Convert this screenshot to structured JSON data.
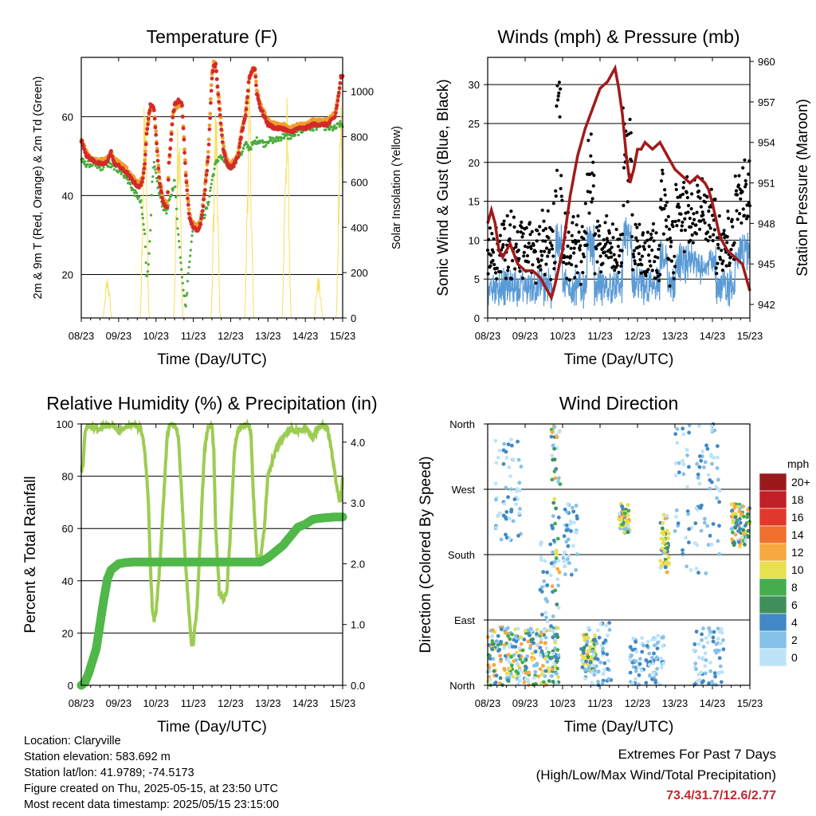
{
  "chart_data": [
    {
      "type": "line",
      "title": "Temperature (F)",
      "xlabel": "Time (Day/UTC)",
      "ylabel": "2m & 9m T (Red, Orange) & 2m Td (Green)",
      "y2label": "Solar Insolation (Yellow)",
      "x": [
        "08/23",
        "09/23",
        "10/23",
        "11/23",
        "12/23",
        "13/23",
        "14/23",
        "15/23"
      ],
      "ylim": [
        9,
        75
      ],
      "y2lim": [
        0,
        1150
      ],
      "yticks": [
        20,
        40,
        60
      ],
      "y2ticks": [
        0,
        200,
        400,
        600,
        800,
        1000
      ],
      "grid": true,
      "series": [
        {
          "name": "2m T",
          "color": "#d42a2a",
          "x": [
            0,
            0.15,
            0.3,
            0.5,
            0.65,
            0.8,
            0.88,
            0.95,
            1.05,
            1.2,
            1.35,
            1.45,
            1.55,
            1.65,
            1.7,
            1.75,
            1.85,
            1.95,
            2.0,
            2.1,
            2.2,
            2.3,
            2.35,
            2.45,
            2.5,
            2.6,
            2.7,
            2.8,
            2.9,
            3.0,
            3.1,
            3.2,
            3.3,
            3.4,
            3.45,
            3.5,
            3.55,
            3.6,
            3.7,
            3.8,
            3.9,
            4.0,
            4.1,
            4.2,
            4.3,
            4.4,
            4.5,
            4.6,
            4.65,
            4.7,
            4.8,
            4.9,
            5.0,
            5.2,
            5.4,
            5.6,
            5.8,
            6.0,
            6.2,
            6.4,
            6.6,
            6.7,
            6.8,
            6.9,
            6.95,
            7.0
          ],
          "values": [
            54,
            50,
            49,
            48,
            48,
            51,
            48,
            48,
            47,
            46,
            44,
            43,
            42,
            44,
            48,
            56,
            63,
            62,
            55,
            43,
            38,
            37,
            48,
            60,
            63,
            64,
            63,
            45,
            34,
            32,
            31,
            33,
            40,
            50,
            60,
            70,
            73,
            73,
            62,
            52,
            48,
            47,
            48,
            50,
            56,
            60,
            70,
            72,
            72,
            66,
            62,
            60,
            58,
            57,
            57,
            56,
            57,
            57,
            58,
            58,
            58,
            59,
            60,
            66,
            70,
            70
          ]
        },
        {
          "name": "9m T",
          "color": "#f39c2a",
          "x": [
            0,
            0.15,
            0.3,
            0.5,
            0.65,
            0.8,
            0.88,
            0.95,
            1.05,
            1.2,
            1.35,
            1.45,
            1.55,
            1.65,
            1.7,
            1.75,
            1.85,
            1.95,
            2.0,
            2.1,
            2.2,
            2.3,
            2.35,
            2.45,
            2.5,
            2.6,
            2.7,
            2.8,
            2.9,
            3.0,
            3.1,
            3.2,
            3.3,
            3.4,
            3.45,
            3.5,
            3.55,
            3.6,
            3.7,
            3.8,
            3.9,
            4.0,
            4.1,
            4.2,
            4.3,
            4.4,
            4.5,
            4.6,
            4.65,
            4.7,
            4.8,
            4.9,
            5.0,
            5.2,
            5.4,
            5.6,
            5.8,
            6.0,
            6.2,
            6.4,
            6.6,
            6.7,
            6.8,
            6.9,
            6.95,
            7.0
          ],
          "values": [
            54,
            51,
            49,
            49,
            49,
            51,
            49,
            49,
            48,
            47,
            45,
            44,
            43,
            45,
            49,
            56,
            62,
            62,
            56,
            44,
            39,
            38,
            48,
            60,
            62,
            63,
            63,
            46,
            35,
            33,
            32,
            34,
            41,
            51,
            61,
            71,
            74,
            73,
            63,
            53,
            49,
            48,
            49,
            51,
            57,
            61,
            70,
            72,
            72,
            67,
            63,
            61,
            59,
            58,
            58,
            57,
            58,
            58,
            59,
            59,
            59,
            60,
            61,
            66,
            70,
            70
          ]
        },
        {
          "name": "2m Td",
          "color": "#4aac3c",
          "x": [
            0,
            0.1,
            0.3,
            0.5,
            0.7,
            0.9,
            1.1,
            1.3,
            1.4,
            1.5,
            1.6,
            1.7,
            1.75,
            1.8,
            1.85,
            1.9,
            1.95,
            2.0,
            2.1,
            2.2,
            2.3,
            2.4,
            2.5,
            2.6,
            2.7,
            2.75,
            2.8,
            2.9,
            3.0,
            3.1,
            3.2,
            3.3,
            3.4,
            3.5,
            3.6,
            3.7,
            3.8,
            3.9,
            4.0,
            4.1,
            4.2,
            4.3,
            4.4,
            4.5,
            4.6,
            4.7,
            4.8,
            4.9,
            5.0,
            5.2,
            5.4,
            5.6,
            5.8,
            6.0,
            6.2,
            6.4,
            6.6,
            6.8,
            6.9,
            7.0
          ],
          "values": [
            49,
            48,
            48,
            47,
            48,
            47,
            46,
            43,
            41,
            40,
            38,
            30,
            20,
            22,
            32,
            43,
            48,
            45,
            40,
            37,
            36,
            40,
            44,
            30,
            20,
            15,
            12,
            24,
            32,
            33,
            34,
            35,
            38,
            44,
            48,
            50,
            49,
            48,
            47,
            48,
            50,
            51,
            53,
            52,
            53,
            54,
            54,
            53,
            54,
            54,
            55,
            55,
            56,
            57,
            57,
            58,
            57,
            57,
            58,
            58
          ]
        },
        {
          "name": "Solar Insolation",
          "color": "#f7e05e",
          "axis": "y2"
        }
      ]
    },
    {
      "type": "scatter",
      "title": "Winds (mph) & Pressure (mb)",
      "xlabel": "Time (Day/UTC)",
      "ylabel": "Sonic Wind & Gust (Blue, Black)",
      "y2label": "Station Pressure (Maroon)",
      "x": [
        "08/23",
        "09/23",
        "10/23",
        "11/23",
        "12/23",
        "13/23",
        "14/23",
        "15/23"
      ],
      "ylim": [
        0,
        33.5
      ],
      "y2lim": [
        941.0,
        960.3
      ],
      "yticks": [
        0,
        5,
        10,
        15,
        20,
        25,
        30
      ],
      "y2ticks": [
        942,
        945,
        948,
        951,
        954,
        957,
        960
      ],
      "grid": true,
      "series": [
        {
          "name": "Sonic Wind",
          "color": "#5b9bd5"
        },
        {
          "name": "Gust",
          "color": "#000000"
        },
        {
          "name": "Station Pressure",
          "color": "#a31a1a",
          "axis": "y2",
          "x": [
            0,
            0.1,
            0.2,
            0.3,
            0.4,
            0.6,
            0.8,
            1.0,
            1.2,
            1.4,
            1.5,
            1.6,
            1.7,
            1.8,
            2.0,
            2.2,
            2.4,
            2.6,
            2.8,
            3.0,
            3.2,
            3.3,
            3.4,
            3.5,
            3.6,
            3.7,
            3.8,
            3.9,
            4.0,
            4.1,
            4.2,
            4.4,
            4.6,
            4.8,
            4.9,
            5.0,
            5.2,
            5.4,
            5.6,
            5.8,
            5.9,
            6.0,
            6.2,
            6.4,
            6.6,
            6.8,
            6.9,
            7.0
          ],
          "values": [
            948,
            949,
            948,
            946,
            945.5,
            946.5,
            945,
            944.5,
            944.5,
            944,
            943.5,
            943,
            942.5,
            943.5,
            946,
            950,
            953,
            955,
            956.5,
            958,
            958.5,
            959,
            959.5,
            958,
            956,
            953,
            951,
            952,
            953.5,
            953.5,
            954,
            953.5,
            954,
            953,
            952.5,
            952,
            951.5,
            951,
            951.5,
            951,
            950.5,
            949.5,
            947,
            946,
            945.5,
            945,
            944,
            943
          ]
        }
      ]
    },
    {
      "type": "line",
      "title": "Relative Humidity (%) & Precipitation (in)",
      "xlabel": "Time (Day/UTC)",
      "ylabel": "Percent & Total Rainfall",
      "x": [
        "08/23",
        "09/23",
        "10/23",
        "11/23",
        "12/23",
        "13/23",
        "14/23",
        "15/23"
      ],
      "ylim": [
        0,
        100
      ],
      "y2lim": [
        0,
        4.3
      ],
      "yticks": [
        0,
        20,
        40,
        60,
        80,
        100
      ],
      "y2ticks": [
        0.0,
        1.0,
        2.0,
        3.0,
        4.0
      ],
      "grid": true,
      "series": [
        {
          "name": "Relative Humidity",
          "color": "#9ccc52",
          "x": [
            0,
            0.05,
            0.1,
            0.15,
            0.3,
            0.5,
            0.7,
            0.9,
            1.0,
            1.2,
            1.4,
            1.6,
            1.7,
            1.8,
            1.85,
            1.9,
            1.95,
            2.0,
            2.1,
            2.2,
            2.3,
            2.35,
            2.45,
            2.5,
            2.6,
            2.7,
            2.8,
            2.9,
            2.95,
            3.0,
            3.1,
            3.2,
            3.3,
            3.4,
            3.5,
            3.55,
            3.6,
            3.7,
            3.8,
            3.9,
            4.0,
            4.1,
            4.2,
            4.3,
            4.4,
            4.5,
            4.55,
            4.6,
            4.7,
            4.8,
            4.9,
            5.0,
            5.2,
            5.4,
            5.6,
            5.8,
            6.0,
            6.2,
            6.4,
            6.5,
            6.6,
            6.7,
            6.8,
            6.9,
            6.95,
            7.0
          ],
          "values": [
            82,
            85,
            97,
            99,
            99,
            98,
            100,
            99,
            97,
            99,
            100,
            98,
            90,
            70,
            45,
            30,
            25,
            28,
            45,
            70,
            95,
            99,
            100,
            100,
            95,
            70,
            45,
            25,
            15,
            16,
            30,
            60,
            90,
            99,
            99,
            90,
            60,
            35,
            33,
            36,
            60,
            90,
            98,
            99,
            100,
            99,
            95,
            75,
            50,
            48,
            60,
            80,
            90,
            95,
            98,
            97,
            98,
            95,
            99,
            100,
            98,
            90,
            80,
            72,
            70,
            80
          ]
        },
        {
          "name": "Total Rainfall",
          "color": "#4fb848",
          "axis": "y2",
          "x": [
            0,
            0.1,
            0.2,
            0.3,
            0.4,
            0.5,
            0.6,
            0.7,
            0.8,
            0.9,
            1.0,
            1.2,
            1.4,
            1.6,
            1.8,
            2.0,
            2.5,
            3.0,
            3.5,
            4.0,
            4.5,
            4.8,
            5.0,
            5.2,
            5.4,
            5.6,
            5.8,
            6.0,
            6.2,
            6.4,
            6.6,
            6.8,
            7.0
          ],
          "values": [
            0.0,
            0.05,
            0.2,
            0.4,
            0.6,
            1.0,
            1.4,
            1.75,
            1.9,
            1.95,
            2.0,
            2.02,
            2.03,
            2.03,
            2.03,
            2.03,
            2.03,
            2.03,
            2.03,
            2.03,
            2.03,
            2.03,
            2.1,
            2.2,
            2.3,
            2.45,
            2.6,
            2.65,
            2.73,
            2.75,
            2.76,
            2.77,
            2.77
          ]
        }
      ]
    },
    {
      "type": "scatter",
      "title": "Wind Direction",
      "xlabel": "Time (Day/UTC)",
      "ylabel": "Direction (Colored By Speed)",
      "x": [
        "08/23",
        "09/23",
        "10/23",
        "11/23",
        "12/23",
        "13/23",
        "14/23",
        "15/23"
      ],
      "yticks": [
        "North",
        "East",
        "South",
        "West",
        "North"
      ],
      "ylim": [
        0,
        360
      ],
      "colorbar": {
        "title": "mph",
        "labels": [
          "0",
          "2",
          "4",
          "6",
          "8",
          "10",
          "12",
          "14",
          "16",
          "18",
          "20+"
        ],
        "colors": [
          "#bde3f7",
          "#85c1e9",
          "#4288c6",
          "#3f8f5a",
          "#44ad4e",
          "#e7e050",
          "#f7a840",
          "#f0702e",
          "#e2382b",
          "#c02026",
          "#9a1a1c"
        ]
      }
    }
  ],
  "info": {
    "location": "Location: Claryville",
    "elevation": "Station elevation: 583.692 m",
    "latlon": "Station lat/lon: 41.9789; -74.5173",
    "created": "Figure created on Thu, 2025-05-15, at 23:50 UTC",
    "recent": "Most recent data timestamp: 2025/05/15 23:15:00"
  },
  "extremes": {
    "line1": "Extremes For Past 7 Days",
    "line2": "(High/Low/Max Wind/Total Precipitation)",
    "values": "73.4/31.7/12.6/2.77"
  }
}
